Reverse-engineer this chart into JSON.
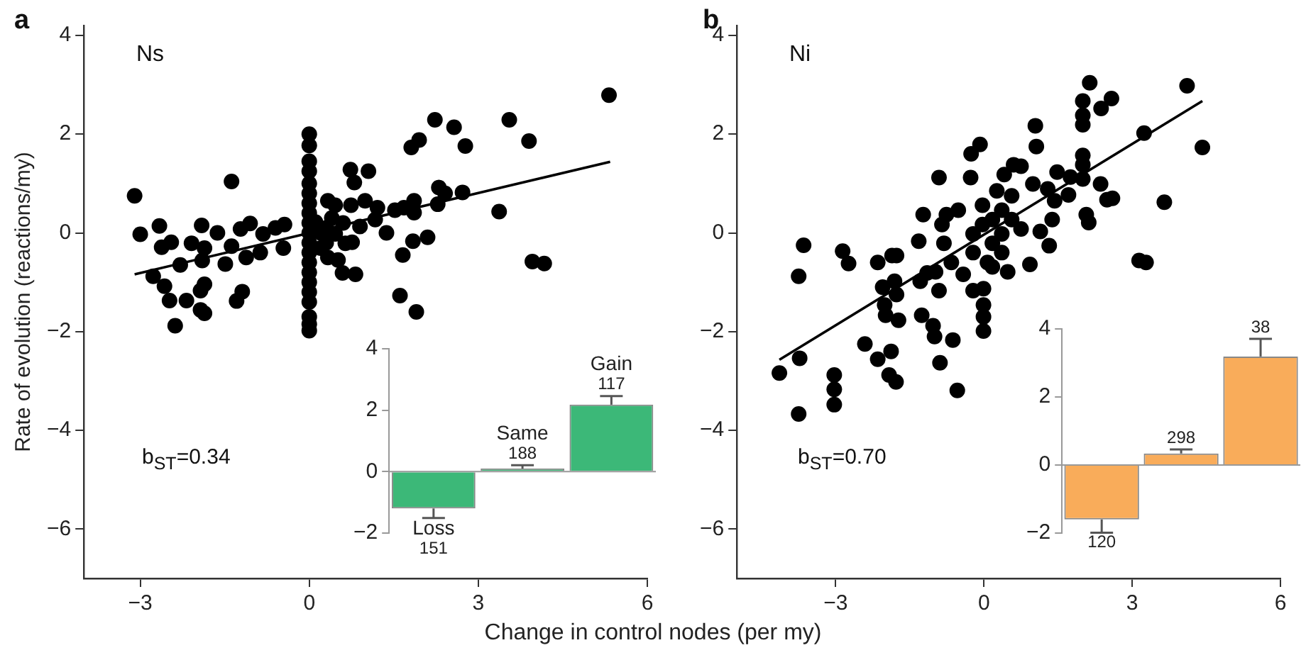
{
  "chart_data": [
    {
      "type": "scatter",
      "title": "Ns",
      "xlabel": "Change in control nodes (per my)",
      "ylabel": "Rate of evolution (reactions/my)",
      "annotations": [
        "a",
        "b$_{ST}$=0.34"
      ],
      "xlim": [
        -4,
        6
      ],
      "xticks": [
        -3,
        0,
        3,
        6
      ],
      "ylim": [
        -7,
        4.2
      ],
      "yticks": [
        -6,
        -4,
        -2,
        0,
        2,
        4
      ],
      "series": [
        {
          "type": "scatter",
          "marker": "circle",
          "color": "#000000",
          "x": [
            -3.1,
            -3.0,
            -2.66,
            -2.62,
            -2.45,
            -2.77,
            -2.57,
            -2.48,
            -2.18,
            -2.38,
            -2.29,
            -2.09,
            -1.91,
            -1.86,
            -1.9,
            -1.86,
            -1.93,
            -1.93,
            -1.86,
            -1.63,
            -1.49,
            -1.38,
            -1.38,
            -1.29,
            -1.19,
            -1.22,
            -1.05,
            -1.12,
            -0.87,
            -0.82,
            -0.6,
            -0.44,
            -0.46,
            0,
            0,
            0,
            0,
            0,
            0,
            0,
            0,
            0,
            0,
            0,
            0,
            0,
            0,
            0,
            0,
            0,
            0,
            0,
            0,
            0.11,
            0.33,
            0.46,
            0.73,
            0.8,
            1.05,
            0.74,
            0.99,
            1.21,
            1.17,
            0.9,
            0.46,
            0.64,
            0.76,
            0.33,
            0.51,
            0.59,
            0.82,
            0.2,
            1.37,
            1.52,
            1.68,
            1.86,
            1.86,
            1.81,
            1.95,
            2.23,
            2.57,
            2.77,
            2.3,
            2.41,
            2.28,
            2.72,
            2.1,
            1.84,
            1.66,
            1.61,
            1.9,
            3.37,
            3.55,
            3.9,
            3.96,
            4.17,
            5.32,
            0.3,
            0.2,
            0.4,
            0.6,
            0.3
          ],
          "values": [
            0.75,
            -0.03,
            0.14,
            -0.29,
            -0.19,
            -0.88,
            -1.08,
            -1.37,
            -1.37,
            -1.88,
            -0.65,
            -0.21,
            0.15,
            -0.31,
            -0.56,
            -1.04,
            -1.17,
            -1.56,
            -1.63,
            0.0,
            -0.63,
            1.04,
            -0.27,
            -1.38,
            -1.19,
            0.08,
            0.19,
            -0.5,
            -0.4,
            -0.02,
            0.1,
            0.17,
            -0.31,
            2.0,
            1.77,
            1.45,
            1.25,
            1.0,
            0.8,
            0.6,
            0.4,
            0.2,
            0,
            -0.2,
            -0.4,
            -0.6,
            -0.8,
            -1.0,
            -1.2,
            -1.4,
            -1.7,
            -1.85,
            -1.98,
            0.22,
            0.65,
            0.56,
            1.28,
            1.02,
            1.25,
            0.56,
            0.65,
            0.51,
            0.27,
            0.13,
            -0.02,
            -0.21,
            -0.19,
            -0.5,
            -0.55,
            -0.81,
            -0.84,
            -0.31,
            0.0,
            0.46,
            0.51,
            0.65,
            0.41,
            1.73,
            1.88,
            2.29,
            2.14,
            1.76,
            0.92,
            0.8,
            0.58,
            0.82,
            -0.09,
            -0.17,
            -0.45,
            -1.27,
            -1.6,
            0.43,
            2.29,
            1.86,
            -0.58,
            -0.62,
            2.79,
            0.1,
            0.0,
            0.3,
            0.2,
            -0.2
          ]
        },
        {
          "type": "line",
          "marker": "none",
          "color": "#000000",
          "x": [
            -3.1,
            5.34
          ],
          "values": [
            -0.84,
            1.44
          ]
        }
      ]
    },
    {
      "type": "bar",
      "categories": [
        "Loss",
        "Same",
        "Gain"
      ],
      "values": [
        -1.2,
        0.1,
        2.18
      ],
      "errors": [
        [
          -1.51,
          -1.2
        ],
        [
          0.1,
          0.21
        ],
        [
          2.18,
          2.46
        ]
      ],
      "color": "#3cb878",
      "ylim": [
        -2,
        4
      ],
      "yticks": [
        -2,
        0,
        2,
        4
      ],
      "tick_labels": "y",
      "annotations": [
        {
          "text": "151",
          "y": -1.51
        },
        {
          "text": "188",
          "y": 0.21
        },
        {
          "text": "117",
          "y": 2.46
        }
      ]
    },
    {
      "type": "scatter",
      "title": "Ni",
      "annotations": [
        "b",
        "b$_{ST}$=0.70"
      ],
      "xlim": [
        -5,
        6
      ],
      "xticks": [
        -3,
        0,
        3,
        6
      ],
      "ylim": [
        -7,
        4.2
      ],
      "yticks": [
        -6,
        -4,
        -2,
        0,
        2,
        4
      ],
      "series": [
        {
          "type": "scatter",
          "marker": "circle",
          "color": "#000000",
          "x": [
            -4.14,
            -3.73,
            -3.75,
            -3.75,
            -3.65,
            -3.03,
            -3.03,
            -3.03,
            -2.86,
            -2.74,
            -2.41,
            -2.15,
            -1.88,
            -1.92,
            -1.78,
            -2.15,
            -2.05,
            -2.01,
            -1.99,
            -1.86,
            -1.77,
            -1.81,
            -1.77,
            -1.73,
            -1.32,
            -1.23,
            -1.29,
            -1.15,
            -0.98,
            -1.26,
            -1.03,
            -1.0,
            -0.89,
            -0.63,
            -0.54,
            -0.91,
            -0.91,
            -0.85,
            -0.76,
            -0.52,
            -0.81,
            -0.66,
            -0.42,
            -0.26,
            -0.08,
            -0.27,
            -0.22,
            -0.01,
            -0.01,
            -0.01,
            -0.01,
            -0.22,
            -0.03,
            0.17,
            0.17,
            0.36,
            0.36,
            0.56,
            0.36,
            0.07,
            -0.22,
            0.56,
            0.75,
            -0.03,
            0.26,
            0.17,
            0.48,
            0.93,
            0.6,
            0.75,
            0.41,
            0.99,
            1.14,
            1.04,
            1.06,
            1.29,
            1.38,
            1.32,
            1.48,
            1.43,
            1.71,
            1.75,
            2.0,
            2.0,
            2.0,
            2.0,
            2.0,
            2.0,
            2.07,
            2.12,
            2.14,
            2.37,
            2.58,
            2.36,
            2.49,
            2.6,
            3.24,
            3.65,
            3.14,
            3.28,
            4.11,
            4.42
          ],
          "values": [
            -2.84,
            -2.54,
            -3.67,
            -0.88,
            -0.25,
            -2.88,
            -3.17,
            -3.48,
            -0.37,
            -0.62,
            -2.25,
            -2.56,
            -2.4,
            -2.88,
            -3.02,
            -0.6,
            -1.1,
            -1.46,
            -1.67,
            -0.46,
            -0.46,
            -0.98,
            -1.25,
            -1.77,
            -0.17,
            0.37,
            -0.98,
            -0.81,
            -0.79,
            -1.67,
            -1.88,
            -2.1,
            -2.63,
            -2.17,
            -3.19,
            -1.17,
            1.12,
            0.17,
            0.37,
            0.46,
            -0.21,
            -0.6,
            -0.84,
            1.6,
            1.79,
            1.12,
            -1.17,
            -1.13,
            -1.46,
            -1.7,
            -1.99,
            -0.02,
            0.17,
            0.27,
            -0.21,
            0.46,
            -0.02,
            0.27,
            -0.4,
            -0.6,
            -0.4,
            0.75,
            0.08,
            0.56,
            0.85,
            -0.69,
            -0.79,
            -0.64,
            1.38,
            1.35,
            1.18,
            0.99,
            0.03,
            2.17,
            1.75,
            0.89,
            0.27,
            -0.26,
            1.23,
            0.65,
            0.77,
            1.13,
            2.67,
            2.38,
            2.19,
            1.57,
            1.38,
            1.09,
            0.37,
            0.21,
            3.04,
            2.52,
            2.72,
            0.99,
            0.67,
            0.7,
            2.02,
            0.62,
            -0.56,
            -0.6,
            2.98,
            1.73
          ]
        },
        {
          "type": "line",
          "marker": "none",
          "color": "#000000",
          "x": [
            -4.14,
            4.42
          ],
          "values": [
            -2.57,
            2.67
          ]
        }
      ]
    },
    {
      "type": "bar",
      "categories": [
        null,
        null,
        null
      ],
      "values": [
        -1.6,
        0.34,
        3.19
      ],
      "errors": [
        [
          -1.99,
          -1.6
        ],
        [
          0.34,
          0.46
        ],
        [
          3.19,
          3.71
        ]
      ],
      "color": "#f9ac5a",
      "ylim": [
        -2,
        4
      ],
      "yticks": [
        -2,
        0,
        2,
        4
      ],
      "tick_labels": "y",
      "annotations": [
        {
          "text": "120",
          "y": -1.99
        },
        {
          "text": "298",
          "y": 0.46
        },
        {
          "text": "38",
          "y": 3.71
        }
      ]
    }
  ]
}
